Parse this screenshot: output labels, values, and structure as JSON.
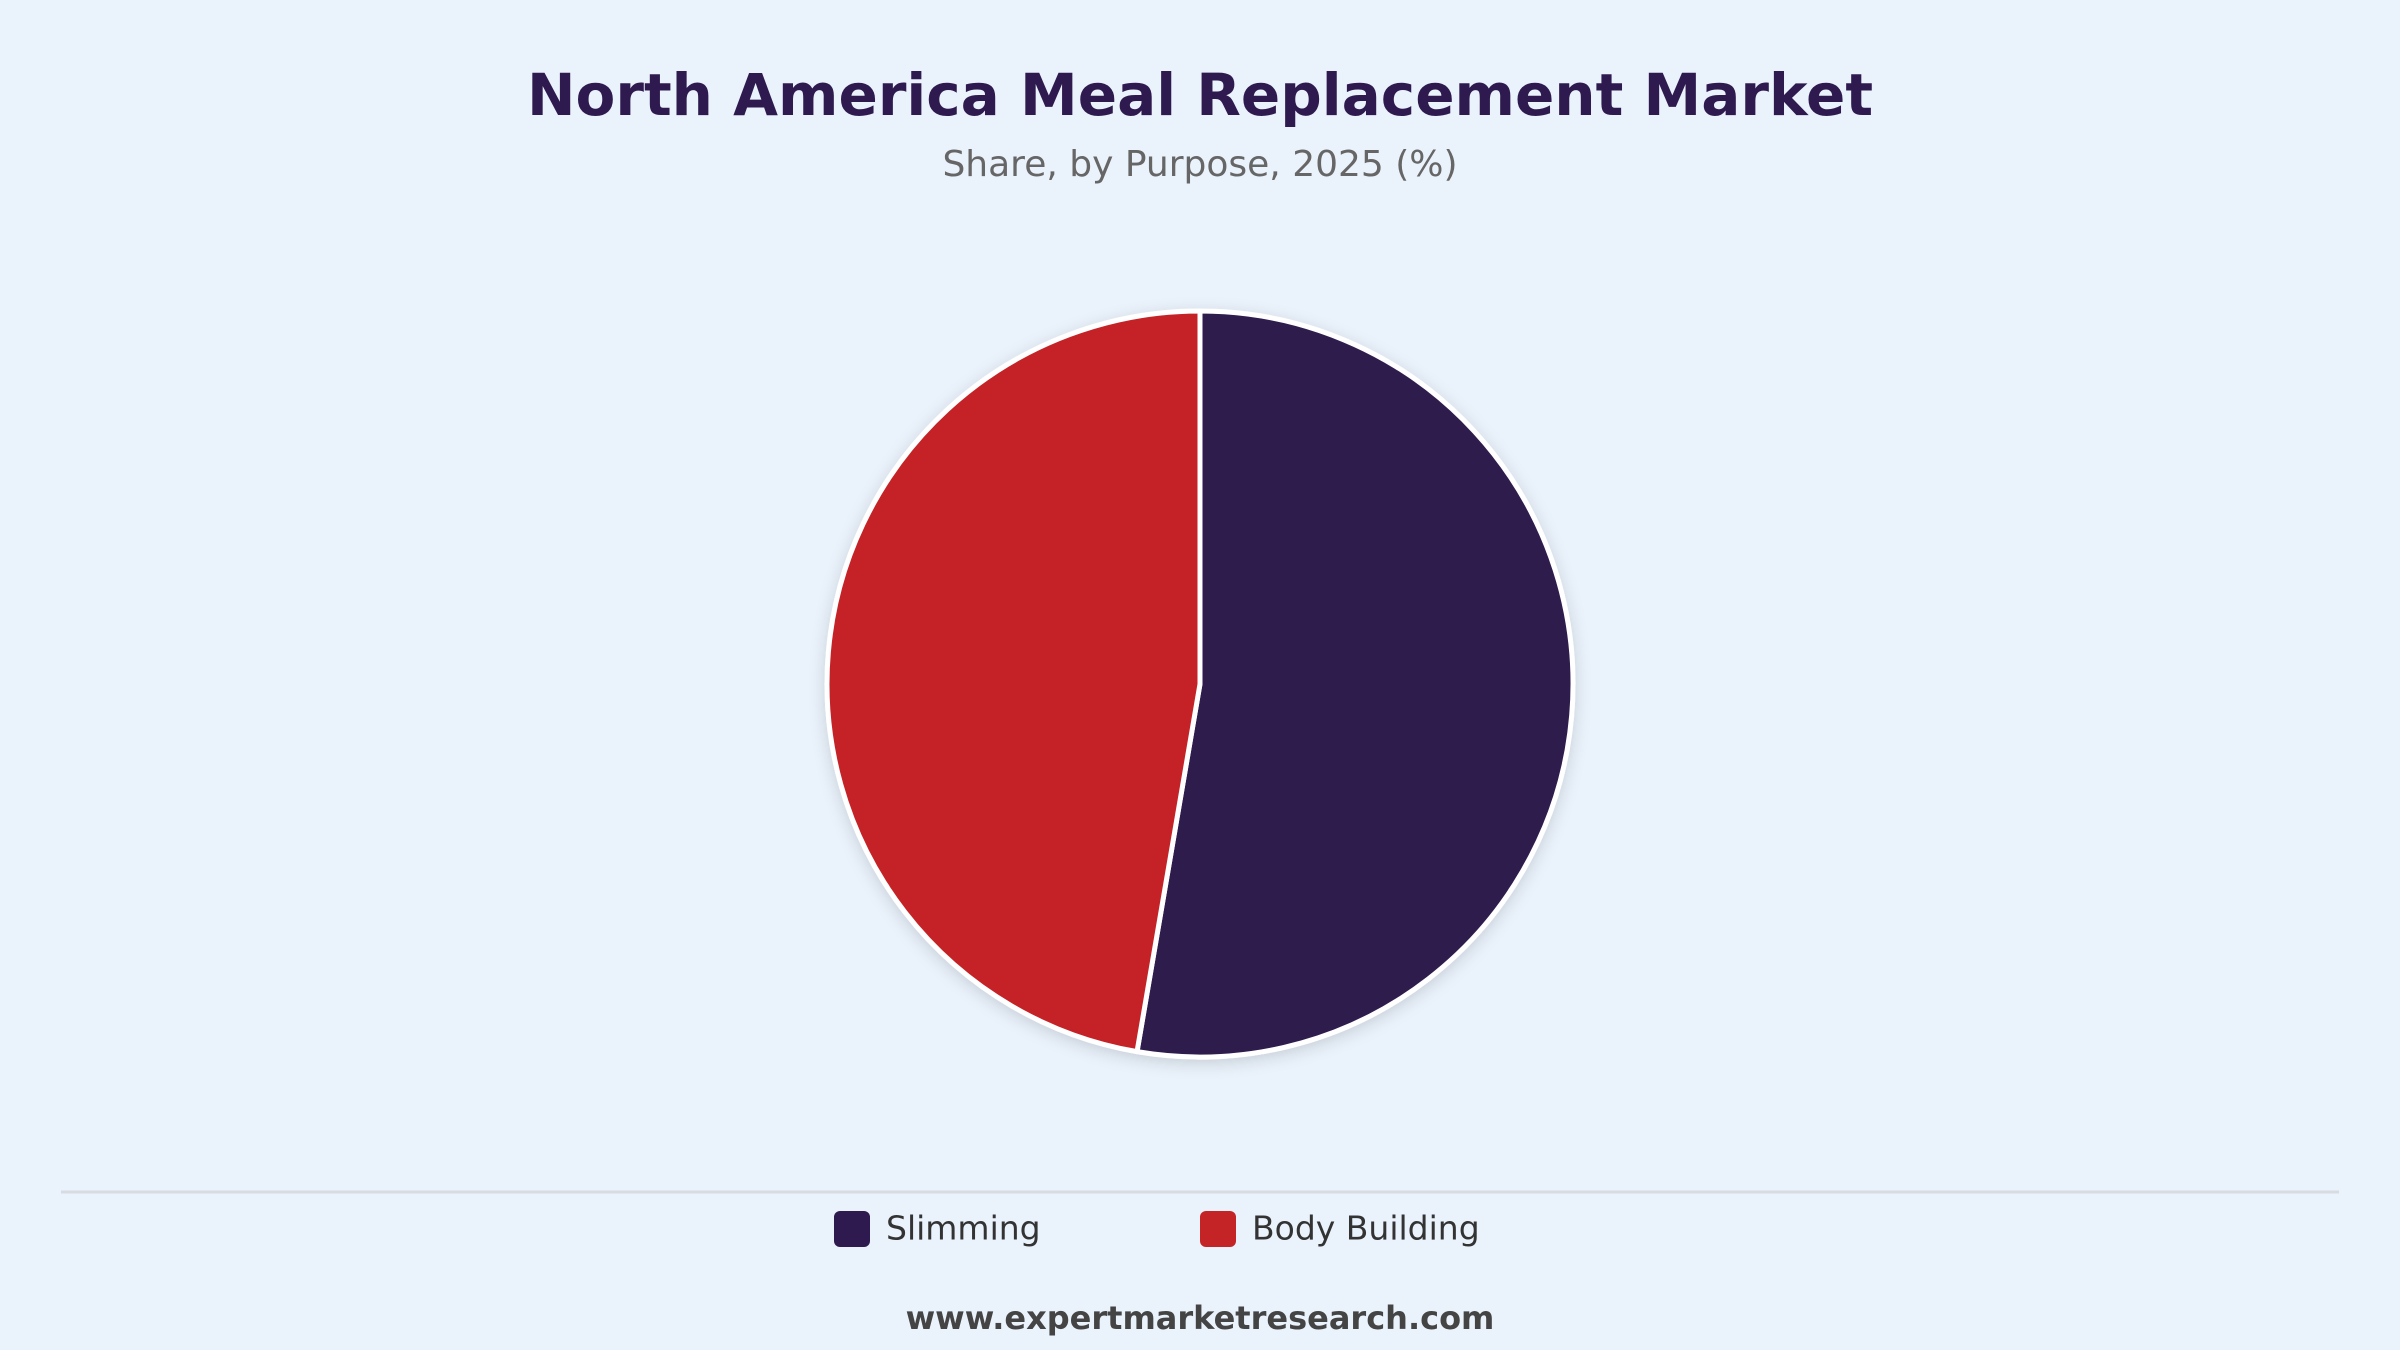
{
  "chart_data": {
    "type": "pie",
    "title": "North America Meal Replacement Market",
    "subtitle": "Share, by Purpose, 2025 (%)",
    "categories": [
      "Slimming",
      "Body Building"
    ],
    "values": [
      52.7,
      47.3
    ],
    "colors": [
      "#2e1a4e",
      "#c42426"
    ],
    "source": "www.expertmarketresearch.com"
  }
}
